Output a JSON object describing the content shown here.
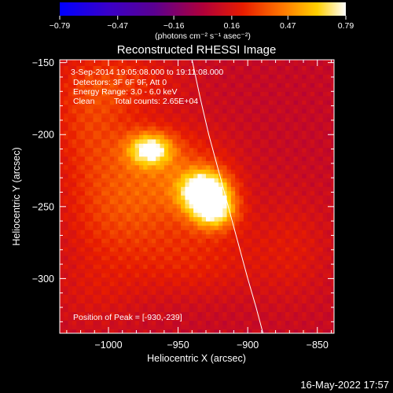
{
  "chart_data": {
    "type": "heatmap",
    "title": "Reconstructed RHESSI Image",
    "xlabel": "Heliocentric X (arcsec)",
    "ylabel": "Heliocentric Y (arcsec)",
    "xlim": [
      -1035,
      -838
    ],
    "ylim": [
      -338,
      -148
    ],
    "x_ticks": [
      -1000,
      -950,
      -900,
      -850
    ],
    "x_tick_labels": [
      "−1000",
      "−950",
      "−900",
      "−850"
    ],
    "y_ticks": [
      -150,
      -200,
      -250,
      -300
    ],
    "y_tick_labels": [
      "−150",
      "−200",
      "−250",
      "−300"
    ],
    "colorbar": {
      "range": [
        -0.79,
        0.79
      ],
      "ticks": [
        -0.79,
        -0.47,
        -0.16,
        0.16,
        0.47,
        0.79
      ],
      "tick_labels": [
        "−0.79",
        "−0.47",
        "−0.16",
        "0.16",
        "0.47",
        "0.79"
      ],
      "unit_label": "(photons cm⁻² s⁻¹ asec⁻²)",
      "stops": [
        {
          "v": 0.0,
          "color": "#0000ff"
        },
        {
          "v": 0.17,
          "color": "#3a00c8"
        },
        {
          "v": 0.33,
          "color": "#5a0090"
        },
        {
          "v": 0.5,
          "color": "#b0003a"
        },
        {
          "v": 0.64,
          "color": "#e81c00"
        },
        {
          "v": 0.78,
          "color": "#ff7800"
        },
        {
          "v": 0.9,
          "color": "#ffd000"
        },
        {
          "v": 1.0,
          "color": "#ffffff"
        }
      ]
    },
    "annotations": {
      "time_range": "3-Sep-2014 19:05:08.000 to 19:11:08.000",
      "detectors": "Detectors: 3F 6F 9F, Att 0",
      "energy_range": "Energy Range: 3.0 - 6.0 keV",
      "method": "Clean",
      "total_counts": "Total counts: 2.65E+04",
      "peak_position": "Position of Peak = [-930,-239]"
    },
    "peak": [
      -930,
      -239
    ],
    "limb_curve": [
      [
        -940,
        -148
      ],
      [
        -934,
        -175
      ],
      [
        -928,
        -200
      ],
      [
        -921,
        -225
      ],
      [
        -914,
        -250
      ],
      [
        -907,
        -275
      ],
      [
        -900,
        -300
      ],
      [
        -894,
        -320
      ],
      [
        -889,
        -338
      ]
    ],
    "sources": [
      {
        "x": -970,
        "y": -210,
        "peak": 0.6,
        "sx": 11,
        "sy": 8
      },
      {
        "x": -931,
        "y": -239,
        "peak": 0.79,
        "sx": 12,
        "sy": 10
      },
      {
        "x": -924,
        "y": -253,
        "peak": 0.55,
        "sx": 11,
        "sy": 9
      },
      {
        "x": -955,
        "y": -228,
        "peak": 0.25,
        "sx": 30,
        "sy": 24
      },
      {
        "x": -1012,
        "y": -190,
        "peak": 0.2,
        "sx": 22,
        "sy": 30
      },
      {
        "x": -995,
        "y": -255,
        "peak": 0.18,
        "sx": 28,
        "sy": 26
      },
      {
        "x": -988,
        "y": -162,
        "peak": 0.14,
        "sx": 30,
        "sy": 14
      },
      {
        "x": -938,
        "y": -286,
        "peak": 0.14,
        "sx": 32,
        "sy": 20
      },
      {
        "x": -868,
        "y": -278,
        "peak": 0.1,
        "sx": 22,
        "sy": 28
      },
      {
        "x": -1010,
        "y": -310,
        "peak": 0.08,
        "sx": 25,
        "sy": 20
      }
    ],
    "background_level": 0.08
  },
  "footer": {
    "timestamp": "16-May-2022 17:57"
  }
}
